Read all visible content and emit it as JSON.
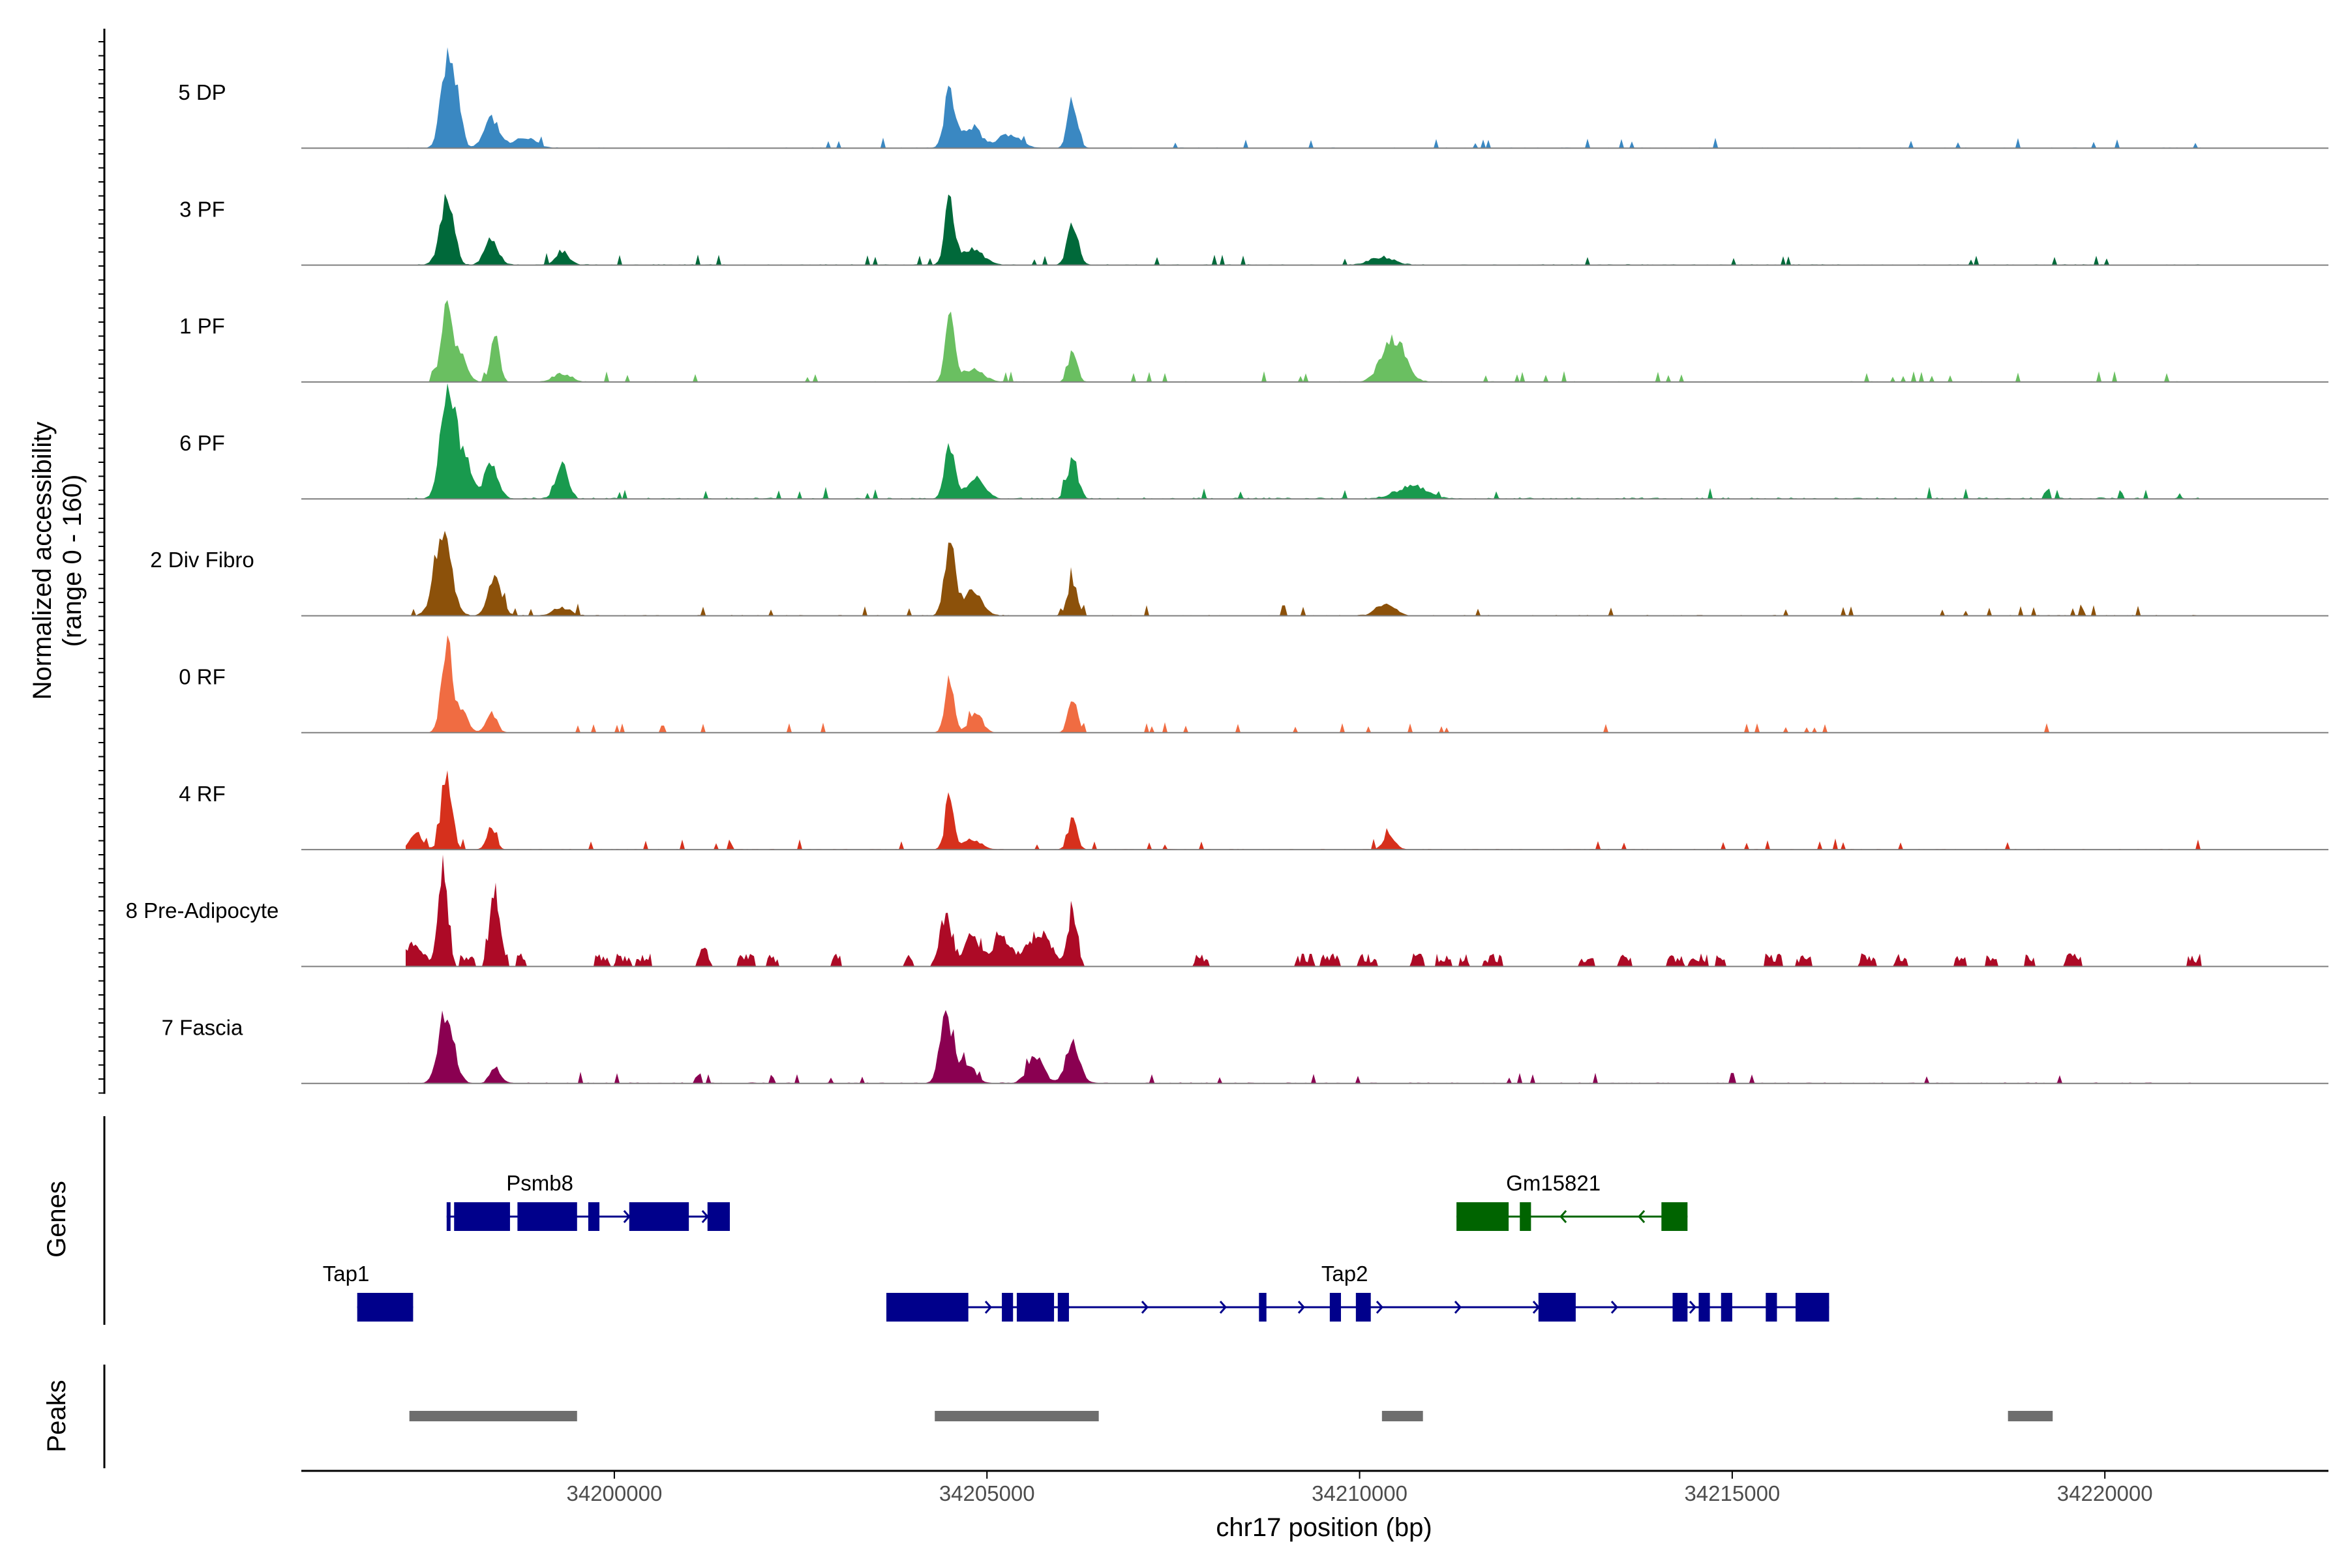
{
  "chart_data": {
    "type": "area",
    "title": "",
    "ylabel_line1": "Normalized accessibility",
    "ylabel_line2": "(range 0 - 160)",
    "ylim": [
      0,
      160
    ],
    "xlabel": "chr17 position (bp)",
    "xlim": [
      34195800,
      34223000
    ],
    "x_ticks": [
      34200000,
      34205000,
      34210000,
      34215000,
      34220000
    ],
    "x_tick_labels": [
      "34200000",
      "34205000",
      "34210000",
      "34215000",
      "34220000"
    ],
    "coverage_extent": [
      34197200,
      34221300
    ],
    "tracks": [
      {
        "name": "5 DP",
        "color": "#3a88c2",
        "noise": 0.04,
        "spiky": false,
        "peaks": [
          [
            34197750,
            150,
            80
          ],
          [
            34197880,
            85,
            70
          ],
          [
            34198350,
            55,
            100
          ],
          [
            34198800,
            18,
            150
          ],
          [
            34204500,
            105,
            70
          ],
          [
            34204800,
            38,
            120
          ],
          [
            34205300,
            25,
            150
          ],
          [
            34206150,
            90,
            65
          ]
        ]
      },
      {
        "name": "3 PF",
        "color": "#00693a",
        "noise": 0.05,
        "spiky": false,
        "peaks": [
          [
            34197750,
            115,
            90
          ],
          [
            34198350,
            45,
            90
          ],
          [
            34199300,
            25,
            90
          ],
          [
            34204500,
            120,
            65
          ],
          [
            34204800,
            28,
            150
          ],
          [
            34206150,
            80,
            70
          ],
          [
            34210300,
            14,
            160
          ]
        ]
      },
      {
        "name": "1 PF",
        "color": "#6abf61",
        "noise": 0.04,
        "spiky": false,
        "peaks": [
          [
            34197750,
            150,
            70
          ],
          [
            34197950,
            50,
            80
          ],
          [
            34198400,
            85,
            60
          ],
          [
            34199300,
            15,
            120
          ],
          [
            34204500,
            125,
            60
          ],
          [
            34204800,
            22,
            150
          ],
          [
            34206150,
            52,
            60
          ],
          [
            34210450,
            80,
            150
          ]
        ]
      },
      {
        "name": "6 PF",
        "color": "#199a4e",
        "noise": 0.08,
        "spiky": false,
        "peaks": [
          [
            34197750,
            170,
            90
          ],
          [
            34197950,
            85,
            120
          ],
          [
            34198350,
            60,
            90
          ],
          [
            34199300,
            60,
            80
          ],
          [
            34204500,
            90,
            70
          ],
          [
            34204850,
            35,
            120
          ],
          [
            34206150,
            70,
            70
          ],
          [
            34210700,
            22,
            200
          ]
        ]
      },
      {
        "name": "2 Div Fibro",
        "color": "#8c510a",
        "noise": 0.05,
        "spiky": false,
        "peaks": [
          [
            34197700,
            160,
            110
          ],
          [
            34198400,
            70,
            90
          ],
          [
            34199300,
            14,
            120
          ],
          [
            34204500,
            135,
            70
          ],
          [
            34204800,
            42,
            130
          ],
          [
            34206150,
            65,
            65
          ],
          [
            34210350,
            22,
            120
          ]
        ]
      },
      {
        "name": "0 RF",
        "color": "#f06c42",
        "noise": 0.03,
        "spiky": false,
        "peaks": [
          [
            34197750,
            160,
            70
          ],
          [
            34197950,
            40,
            80
          ],
          [
            34198350,
            38,
            70
          ],
          [
            34204500,
            100,
            60
          ],
          [
            34204850,
            35,
            90
          ],
          [
            34206150,
            65,
            60
          ]
        ]
      },
      {
        "name": "4 RF",
        "color": "#d6301c",
        "noise": 0.04,
        "spiky": false,
        "peaks": [
          [
            34197750,
            125,
            70
          ],
          [
            34197350,
            30,
            80
          ],
          [
            34198350,
            40,
            60
          ],
          [
            34204500,
            90,
            60
          ],
          [
            34204800,
            18,
            120
          ],
          [
            34206150,
            50,
            60
          ],
          [
            34210400,
            25,
            80
          ]
        ]
      },
      {
        "name": "8 Pre-Adipocyte",
        "color": "#ad0a26",
        "noise": 0.2,
        "spiky": true,
        "peaks": [
          [
            34197700,
            195,
            60
          ],
          [
            34198400,
            135,
            70
          ],
          [
            34197300,
            40,
            120
          ],
          [
            34201200,
            38,
            50
          ],
          [
            34204450,
            95,
            80
          ],
          [
            34204800,
            55,
            100
          ],
          [
            34205200,
            55,
            120
          ],
          [
            34205700,
            60,
            150
          ],
          [
            34206150,
            100,
            60
          ]
        ]
      },
      {
        "name": "7 Fascia",
        "color": "#8a0051",
        "noise": 0.05,
        "spiky": false,
        "peaks": [
          [
            34197750,
            130,
            100
          ],
          [
            34198400,
            30,
            70
          ],
          [
            34204450,
            125,
            80
          ],
          [
            34204700,
            40,
            120
          ],
          [
            34205650,
            45,
            110
          ],
          [
            34206150,
            75,
            90
          ]
        ]
      }
    ],
    "genes_label": "Genes",
    "genes": [
      {
        "name": "Psmb8",
        "strand": "+",
        "color": "#00008b",
        "row": 1,
        "label_x": 34199000,
        "start": 34197750,
        "end": 34201550,
        "exons": [
          [
            34197750,
            34197800
          ],
          [
            34197850,
            34198600
          ],
          [
            34198700,
            34199500
          ],
          [
            34199650,
            34199800
          ],
          [
            34200200,
            34201000
          ],
          [
            34201250,
            34201550
          ]
        ]
      },
      {
        "name": "Gm15821",
        "strand": "-",
        "color": "#006400",
        "row": 1,
        "label_x": 34212600,
        "start": 34211300,
        "end": 34214400,
        "exons": [
          [
            34211300,
            34212000
          ],
          [
            34212150,
            34212300
          ],
          [
            34214050,
            34214400
          ]
        ]
      },
      {
        "name": "Tap1",
        "strand": "-",
        "color": "#00008b",
        "row": 2,
        "label_x": 34196400,
        "start": 34196550,
        "end": 34197300,
        "exons": [
          [
            34196550,
            34197300
          ]
        ]
      },
      {
        "name": "Tap2",
        "strand": "+",
        "color": "#00008b",
        "row": 2,
        "label_x": 34209800,
        "start": 34203650,
        "end": 34216300,
        "exons": [
          [
            34203650,
            34204750
          ],
          [
            34205200,
            34205350
          ],
          [
            34205400,
            34205900
          ],
          [
            34205950,
            34206100
          ],
          [
            34208650,
            34208750
          ],
          [
            34209600,
            34209750
          ],
          [
            34209950,
            34210150
          ],
          [
            34212400,
            34212900
          ],
          [
            34214200,
            34214400
          ],
          [
            34214550,
            34214700
          ],
          [
            34214850,
            34215000
          ],
          [
            34215450,
            34215600
          ],
          [
            34215850,
            34216300
          ]
        ]
      }
    ],
    "peaks_label": "Peaks",
    "peak_regions": [
      [
        34197250,
        34199500
      ],
      [
        34204300,
        34206500
      ],
      [
        34210300,
        34210850
      ],
      [
        34218700,
        34219300
      ]
    ],
    "colors": {
      "axis": "#000000",
      "baseline": "#7f7f7f",
      "peak_region": "#6e6e6e"
    }
  }
}
